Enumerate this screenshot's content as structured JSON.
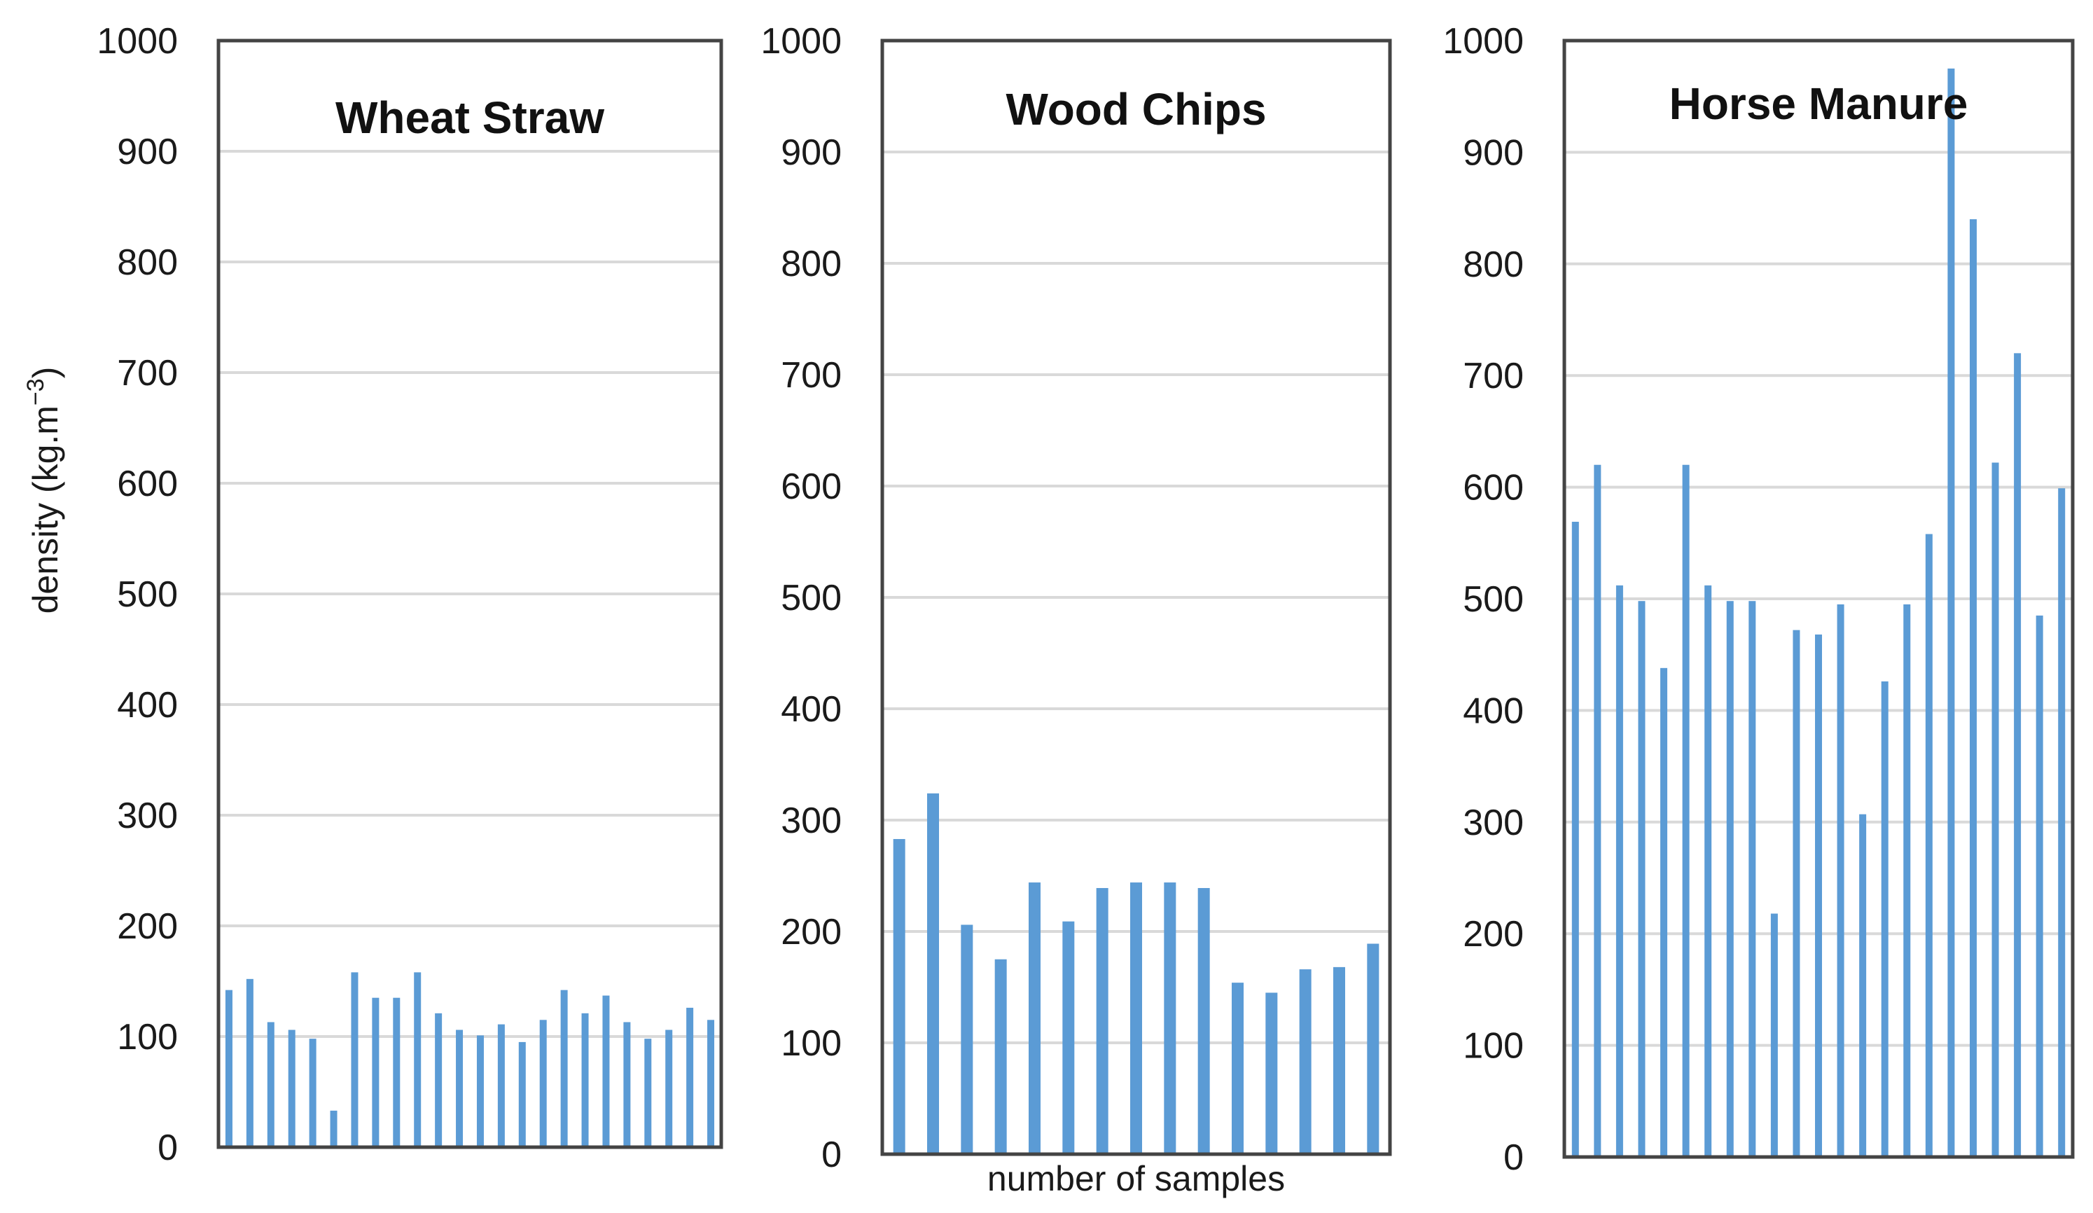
{
  "chart_data": [
    {
      "type": "bar",
      "title": "Wheat Straw",
      "ylabel": "density (kg.m",
      "ylabel_sup": "−3",
      "ylabel_close": ")",
      "xlabel": "",
      "ylim": [
        0,
        1000
      ],
      "yticks": [
        "0",
        "100",
        "200",
        "300",
        "400",
        "500",
        "600",
        "700",
        "800",
        "900",
        "1000"
      ],
      "grid": true,
      "color": "#5b9bd5",
      "values": [
        142,
        152,
        113,
        106,
        98,
        33,
        158,
        135,
        135,
        158,
        121,
        106,
        101,
        111,
        95,
        115,
        142,
        121,
        137,
        113,
        98,
        106,
        126,
        115
      ]
    },
    {
      "type": "bar",
      "title": "Wood Chips",
      "ylabel": "",
      "xlabel": "number of samples",
      "ylim": [
        0,
        1000
      ],
      "yticks": [
        "0",
        "100",
        "200",
        "300",
        "400",
        "500",
        "600",
        "700",
        "800",
        "900",
        "1000"
      ],
      "grid": true,
      "color": "#5b9bd5",
      "values": [
        283,
        324,
        206,
        175,
        244,
        209,
        239,
        244,
        244,
        239,
        154,
        145,
        166,
        168,
        189
      ]
    },
    {
      "type": "bar",
      "title": "Horse Manure",
      "ylabel": "",
      "xlabel": "",
      "ylim": [
        0,
        1000
      ],
      "yticks": [
        "0",
        "100",
        "200",
        "300",
        "400",
        "500",
        "600",
        "700",
        "800",
        "900",
        "1000"
      ],
      "grid": true,
      "color": "#5b9bd5",
      "values": [
        569,
        620,
        512,
        498,
        438,
        620,
        512,
        498,
        498,
        218,
        472,
        468,
        495,
        307,
        426,
        495,
        558,
        975,
        840,
        622,
        720,
        485,
        599
      ]
    }
  ]
}
